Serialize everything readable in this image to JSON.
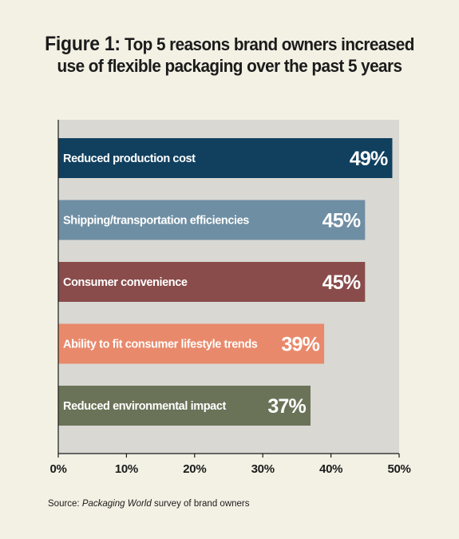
{
  "figure": {
    "prefix": "Figure 1:",
    "title_line1": " Top 5 reasons brand owners increased",
    "title_line2": "use of flexible packaging over the past 5 years"
  },
  "source": {
    "label": "Source: ",
    "publication": "Packaging World",
    "rest": " survey of brand owners"
  },
  "chart_data": {
    "type": "bar",
    "orientation": "horizontal",
    "categories": [
      "Reduced production cost",
      "Shipping/transportation efficiencies",
      "Consumer convenience",
      "Ability to fit consumer lifestyle trends",
      "Reduced environmental impact"
    ],
    "values": [
      49,
      45,
      45,
      39,
      37
    ],
    "value_labels": [
      "49%",
      "45%",
      "45%",
      "39%",
      "37%"
    ],
    "bar_colors": [
      "#11405f",
      "#6e8ea3",
      "#894c4b",
      "#e9896b",
      "#6a7358"
    ],
    "title": "Figure 1: Top 5 reasons brand owners increased use of flexible packaging over the past 5 years",
    "xlabel": "",
    "ylabel": "",
    "xlim": [
      0,
      50
    ],
    "xticks": [
      "0%",
      "10%",
      "20%",
      "30%",
      "40%",
      "50%"
    ],
    "plot_background": "#d9d8d3",
    "grid": false
  }
}
